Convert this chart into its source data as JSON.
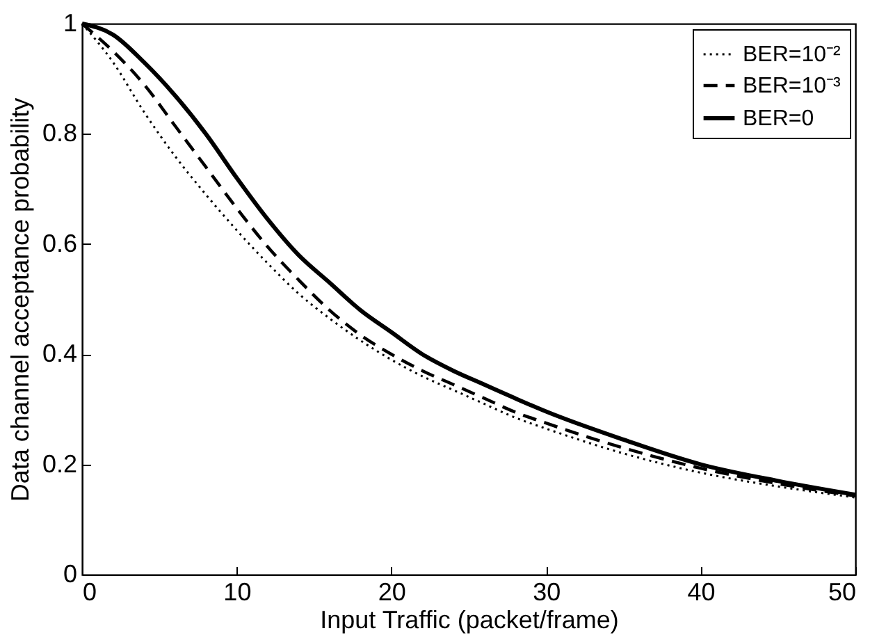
{
  "chart_data": {
    "type": "line",
    "xlabel": "Input Traffic  (packet/frame)",
    "ylabel": "Data channel acceptance probability",
    "x": [
      0,
      2,
      4,
      6,
      8,
      10,
      12,
      14,
      16,
      18,
      20,
      22,
      24,
      26,
      28,
      30,
      35,
      40,
      45,
      50
    ],
    "series": [
      {
        "name": "BER=10⁻²",
        "color": "#000000",
        "line_style": "dotted",
        "values": [
          1,
          0.93,
          0.84,
          0.76,
          0.69,
          0.625,
          0.565,
          0.51,
          0.465,
          0.425,
          0.39,
          0.36,
          0.335,
          0.31,
          0.285,
          0.265,
          0.22,
          0.185,
          0.16,
          0.14
        ]
      },
      {
        "name": "BER=10⁻³",
        "color": "#000000",
        "line_style": "dashed",
        "values": [
          1,
          0.95,
          0.89,
          0.815,
          0.74,
          0.665,
          0.595,
          0.535,
          0.48,
          0.435,
          0.4,
          0.37,
          0.345,
          0.32,
          0.295,
          0.275,
          0.23,
          0.193,
          0.165,
          0.143
        ]
      },
      {
        "name": "BER=0",
        "color": "#000000",
        "line_style": "solid",
        "values": [
          1,
          0.98,
          0.93,
          0.87,
          0.8,
          0.72,
          0.645,
          0.58,
          0.53,
          0.48,
          0.44,
          0.4,
          0.37,
          0.345,
          0.32,
          0.296,
          0.245,
          0.2,
          0.17,
          0.145
        ]
      }
    ],
    "xlim": [
      0,
      50
    ],
    "xticks": [
      0,
      10,
      20,
      30,
      40,
      50
    ],
    "ylim": [
      0,
      1
    ],
    "yticks": [
      0,
      0.2,
      0.4,
      0.6,
      0.8,
      1
    ],
    "grid": false,
    "legend": "top right",
    "marker": "none"
  }
}
